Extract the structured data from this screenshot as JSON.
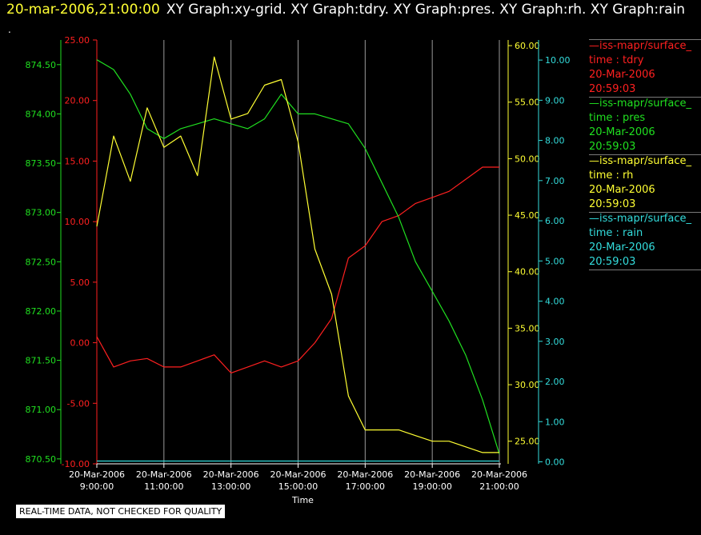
{
  "header": {
    "time": "20-mar-2006,21:00:00",
    "graphs": "XY Graph:xy-grid.  XY Graph:tdry.  XY Graph:pres.  XY Graph:rh.  XY Graph:rain"
  },
  "dot": ".",
  "footer": "REAL-TIME DATA, NOT CHECKED FOR QUALITY",
  "colors": {
    "tdry": "#ff2020",
    "pres": "#20e020",
    "rh": "#ffff33",
    "rain": "#33dddd",
    "grid": "#9a9a9a",
    "background": "#000000"
  },
  "legend": [
    {
      "series": "tdry",
      "label": "—iss-mapr/surface_",
      "field": "time : tdry",
      "date": "20-Mar-2006",
      "time": "20:59:03"
    },
    {
      "series": "pres",
      "label": "—iss-mapr/surface_",
      "field": "time : pres",
      "date": "20-Mar-2006",
      "time": "20:59:03"
    },
    {
      "series": "rh",
      "label": "—iss-mapr/surface_",
      "field": "time : rh",
      "date": "20-Mar-2006",
      "time": "20:59:03"
    },
    {
      "series": "rain",
      "label": "—iss-mapr/surface_",
      "field": "time : rain",
      "date": "20-Mar-2006",
      "time": "20:59:03"
    }
  ],
  "chart_data": {
    "type": "line",
    "xlabel": "Time",
    "x_ticks": [
      {
        "date": "20-Mar-2006",
        "time": "9:00:00"
      },
      {
        "date": "20-Mar-2006",
        "time": "11:00:00"
      },
      {
        "date": "20-Mar-2006",
        "time": "13:00:00"
      },
      {
        "date": "20-Mar-2006",
        "time": "15:00:00"
      },
      {
        "date": "20-Mar-2006",
        "time": "17:00:00"
      },
      {
        "date": "20-Mar-2006",
        "time": "19:00:00"
      },
      {
        "date": "20-Mar-2006",
        "time": "21:00:00"
      }
    ],
    "grid": "vertical",
    "x": [
      "09:00",
      "09:30",
      "10:00",
      "10:30",
      "11:00",
      "11:30",
      "12:00",
      "12:30",
      "13:00",
      "13:30",
      "14:00",
      "14:30",
      "15:00",
      "15:30",
      "16:00",
      "16:30",
      "17:00",
      "17:30",
      "18:00",
      "18:30",
      "19:00",
      "19:30",
      "20:00",
      "20:30",
      "21:00"
    ],
    "axes": {
      "tdry": {
        "ylim": [
          -10,
          25
        ],
        "ticks": [
          "-10.00",
          "-5.00",
          "0.00",
          "5.00",
          "10.00",
          "15.00",
          "20.00",
          "25.00"
        ]
      },
      "pres": {
        "ylim": [
          870.45,
          874.75
        ],
        "ticks": [
          "870.50",
          "871.00",
          "871.50",
          "872.00",
          "872.50",
          "873.00",
          "873.50",
          "874.00",
          "874.50"
        ]
      },
      "rh": {
        "ylim": [
          23.0,
          60.5
        ],
        "ticks": [
          "25.00",
          "30.00",
          "35.00",
          "40.00",
          "45.00",
          "50.00",
          "55.00",
          "60.00"
        ]
      },
      "rain": {
        "ylim": [
          -0.05,
          10.5
        ],
        "ticks": [
          "0.00",
          "1.00",
          "2.00",
          "3.00",
          "4.00",
          "5.00",
          "6.00",
          "7.00",
          "8.00",
          "9.00",
          "10.00"
        ]
      }
    },
    "series": [
      {
        "key": "tdry",
        "values": [
          0.5,
          -2.0,
          -1.5,
          -1.3,
          -2.0,
          -2.0,
          -1.5,
          -1.0,
          -2.5,
          -2.0,
          -1.5,
          -2.0,
          -1.5,
          0.0,
          2.0,
          7.0,
          8.0,
          10.0,
          10.5,
          11.5,
          12.0,
          12.5,
          13.5,
          14.5,
          14.5
        ]
      },
      {
        "key": "pres",
        "values": [
          874.55,
          874.45,
          874.2,
          873.85,
          873.75,
          873.85,
          873.9,
          873.95,
          873.9,
          873.85,
          873.95,
          874.2,
          874.0,
          874.0,
          873.95,
          873.9,
          873.65,
          873.3,
          872.95,
          872.5,
          872.2,
          871.9,
          871.55,
          871.1,
          870.55
        ]
      },
      {
        "key": "rh",
        "values": [
          44.0,
          52.0,
          48.0,
          54.5,
          51.0,
          52.0,
          48.5,
          59.0,
          53.5,
          54.0,
          56.5,
          57.0,
          51.5,
          42.0,
          38.0,
          29.0,
          26.0,
          26.0,
          26.0,
          25.5,
          25.0,
          25.0,
          24.5,
          24.0,
          24.0
        ]
      },
      {
        "key": "rain",
        "values": [
          0.02,
          0.02,
          0.02,
          0.02,
          0.02,
          0.02,
          0.02,
          0.02,
          0.02,
          0.02,
          0.02,
          0.02,
          0.02,
          0.02,
          0.02,
          0.02,
          0.02,
          0.02,
          0.02,
          0.02,
          0.02,
          0.02,
          0.02,
          0.02,
          0.02
        ]
      }
    ]
  }
}
